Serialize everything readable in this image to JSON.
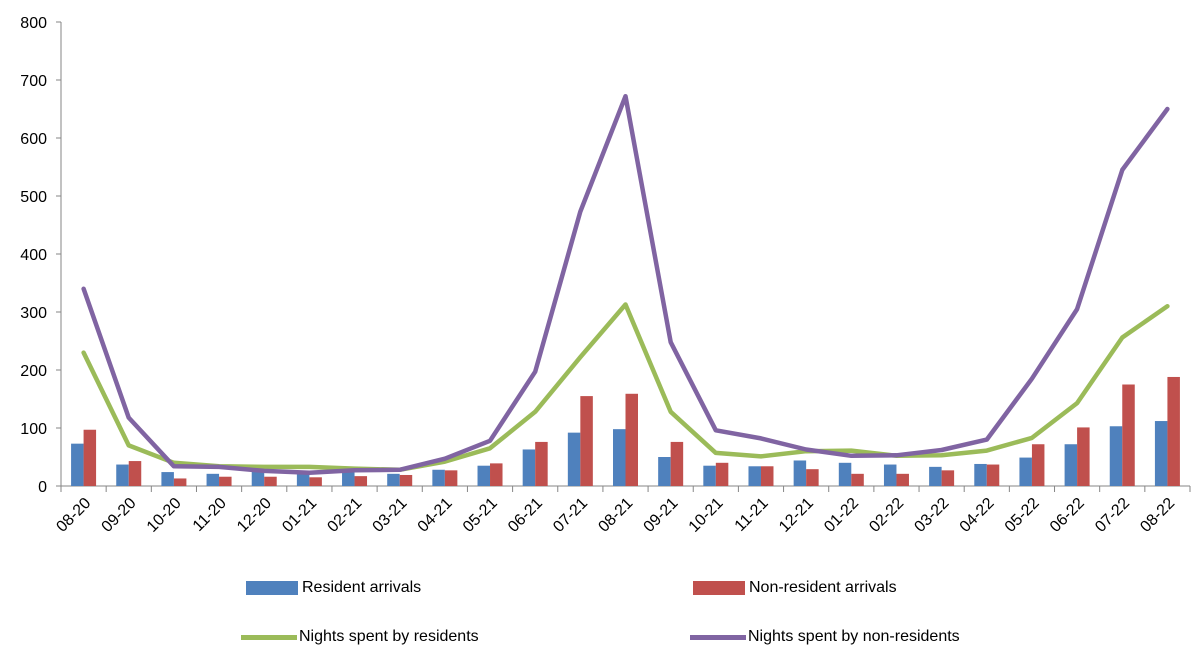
{
  "chart_data": {
    "type": "bar",
    "categories": [
      "08-20",
      "09-20",
      "10-20",
      "11-20",
      "12-20",
      "01-21",
      "02-21",
      "03-21",
      "04-21",
      "05-21",
      "06-21",
      "07-21",
      "08-21",
      "09-21",
      "10-21",
      "11-21",
      "12-21",
      "01-22",
      "02-22",
      "03-22",
      "04-22",
      "05-22",
      "06-22",
      "07-22",
      "08-22"
    ],
    "ylim": [
      0,
      800
    ],
    "yticks": [
      0,
      100,
      200,
      300,
      400,
      500,
      600,
      700,
      800
    ],
    "grid": false,
    "legend_position": "bottom",
    "bar_series": [
      {
        "name": "Resident arrivals",
        "color": "#4f81bd",
        "values": [
          73,
          37,
          24,
          21,
          25,
          25,
          25,
          21,
          28,
          35,
          63,
          92,
          98,
          50,
          35,
          34,
          44,
          40,
          37,
          33,
          38,
          49,
          72,
          103,
          112
        ]
      },
      {
        "name": "Non-resident arrivals",
        "color": "#c0504d",
        "values": [
          97,
          43,
          13,
          16,
          16,
          15,
          17,
          19,
          27,
          39,
          76,
          155,
          159,
          76,
          40,
          34,
          29,
          21,
          21,
          27,
          37,
          72,
          101,
          175,
          188
        ]
      }
    ],
    "line_series": [
      {
        "name": "Nights spent by residents",
        "color": "#9bbb59",
        "values": [
          230,
          70,
          40,
          34,
          33,
          33,
          30,
          28,
          42,
          65,
          128,
          222,
          313,
          128,
          57,
          51,
          60,
          61,
          52,
          53,
          61,
          83,
          143,
          256,
          310
        ]
      },
      {
        "name": "Nights spent by non-residents",
        "color": "#8064a2",
        "values": [
          340,
          118,
          34,
          33,
          26,
          23,
          27,
          28,
          47,
          78,
          197,
          473,
          672,
          248,
          96,
          82,
          63,
          52,
          53,
          62,
          80,
          185,
          305,
          545,
          650
        ]
      }
    ]
  }
}
